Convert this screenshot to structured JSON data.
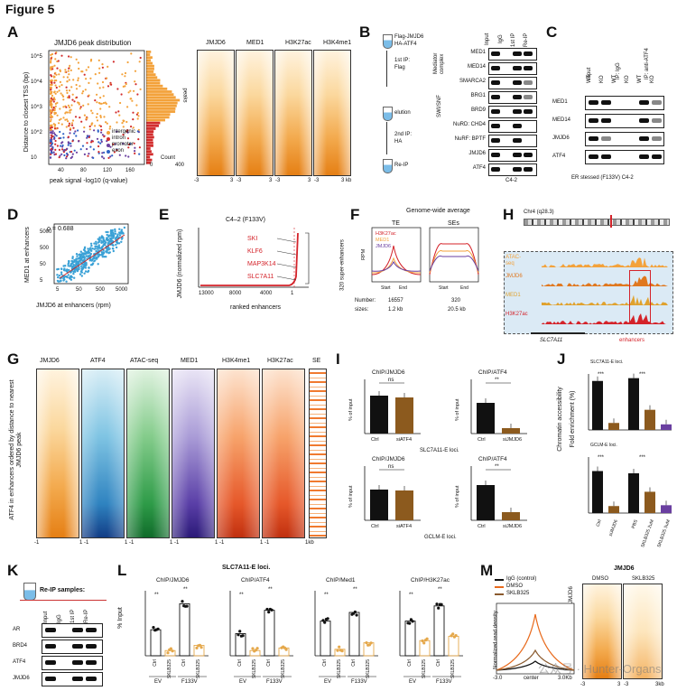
{
  "figure_title": "Figure 5",
  "panels": {
    "A": {
      "letter": "A",
      "title": "JMJD6 peak distribution",
      "ylabel": "Distance to closest TSS (bp)",
      "xlabel": "peak signal -log10 (q-value)",
      "yticks": [
        "10^5",
        "10^4",
        "10^3",
        "10^2",
        "10"
      ],
      "xticks": [
        "40",
        "80",
        "120",
        "160"
      ],
      "legend": [
        {
          "label": "intergenic",
          "color": "#f3a23b"
        },
        {
          "label": "intron",
          "color": "#d22d2d"
        },
        {
          "label": "promoter",
          "color": "#6a3fa0"
        },
        {
          "label": "exon",
          "color": "#2f63c6"
        }
      ],
      "hist_label": "peaks",
      "count_label": "Count",
      "count_ticks": [
        "0",
        "400"
      ],
      "heatmap_labels": [
        "JMJD6",
        "MED1",
        "H3K27ac",
        "H3K4me1"
      ],
      "heatmap_xticks": [
        "-3",
        "3",
        "-3",
        "3",
        "-3",
        "3",
        "-3",
        "3 kb"
      ]
    },
    "B": {
      "letter": "B",
      "steps": [
        "Flag-JMJD6",
        "HA-ATF4",
        "1st IP:",
        "Flag",
        "elution",
        "2nd IP:",
        "HA",
        "Re-IP"
      ],
      "lanes": [
        "Input",
        "IgG",
        "1st IP",
        "Re-IP"
      ],
      "groups": [
        "Mediator complex",
        "SWI/SNF"
      ],
      "rows": [
        "MED1",
        "MED14",
        "SMARCA2",
        "BRG1",
        "BRD9",
        "NuRD: CHD4",
        "NuRF: BPTF",
        "JMJD6",
        "ATF4"
      ],
      "cell": "C4-2"
    },
    "C": {
      "letter": "C",
      "lanes": [
        "WT",
        "KO",
        "WT",
        "KO",
        "WT",
        "KO"
      ],
      "group_labels": [
        "Input",
        "IP: IgG",
        "IP: anti-ATF4"
      ],
      "rows": [
        "MED1",
        "MED14",
        "JMJD6",
        "ATF4"
      ],
      "caption": "ER stessed (F133V) C4-2"
    },
    "D": {
      "letter": "D",
      "rho": "ρ = 0.688",
      "xlabel": "JMJD6 at enhancers (rpm)",
      "ylabel": "MED1 at enhancers",
      "xticks": [
        "5",
        "50",
        "500",
        "5000"
      ],
      "yticks": [
        "5",
        "50",
        "500",
        "5000"
      ]
    },
    "E": {
      "letter": "E",
      "title": "C4–2 (F133V)",
      "ylabel": "JMJD6 (normalized rpm)",
      "xlabel": "ranked enhancers",
      "xticks": [
        "13000",
        "8000",
        "4000",
        "1"
      ],
      "genes": [
        "SKI",
        "KLF6",
        "MAP3K14",
        "SLC7A11"
      ],
      "right_label": "320 super-enhancers"
    },
    "F": {
      "letter": "F",
      "title": "Genome-wide average",
      "sub_left": "TE",
      "sub_right": "SEs",
      "ylabel": "RPM",
      "legend": [
        {
          "label": "H3K27ac",
          "color": "#d4232a"
        },
        {
          "label": "MED1",
          "color": "#f3a23b"
        },
        {
          "label": "JMJD6",
          "color": "#6a3fa0"
        }
      ],
      "xticks": [
        "Start",
        "End"
      ],
      "number_label": "Number:",
      "sizes_label": "sizes:",
      "number_left": "16557",
      "number_right": "320",
      "size_left": "1.2 kb",
      "size_right": "20.5 kb"
    },
    "G": {
      "letter": "G",
      "columns": [
        "JMJD6",
        "ATF4",
        "ATAC-seq",
        "MED1",
        "H3K4me1",
        "H3K27ac",
        "SE"
      ],
      "ylabel": "ATF4 in enhancers ordered by distance to nearest JMJD6 peak",
      "xticks": [
        "-1",
        "1 -1",
        "1 -1",
        "1 -1",
        "1 -1",
        "1 -1",
        "1kb"
      ]
    },
    "H": {
      "letter": "H",
      "chrom": "Chr4 (q28.3)",
      "tracks": [
        "ATAC-seq",
        "JMJD6",
        "MED1",
        "H3K27ac"
      ],
      "gene": "SLC7A11",
      "enhancers_label": "enhancers"
    },
    "I": {
      "letter": "I",
      "subpanels": [
        {
          "title": "ChIP/JMJD6",
          "xlabels": [
            "Ctrl",
            "siATF4"
          ],
          "sig": "ns"
        },
        {
          "title": "ChIP/ATF4",
          "xlabels": [
            "Ctrl",
            "siJMJD6"
          ],
          "sig": "**"
        },
        {
          "title": "ChIP/JMJD6",
          "xlabels": [
            "Ctrl",
            "siATF4"
          ],
          "sig": "ns"
        },
        {
          "title": "ChIP/ATF4",
          "xlabels": [
            "Ctrl",
            "siJMJD6"
          ],
          "sig": "**"
        }
      ],
      "ylabel": "% of input",
      "locus_top": "SLC7A11-E loci.",
      "locus_bottom": "GCLM-E loci."
    },
    "J": {
      "letter": "J",
      "ylabel": "Chromatin accessibility",
      "ylabel2": "Fold enrichment (%)",
      "locus_top": "SLC7A11-E loci.",
      "locus_bottom": "GCLM-E loci.",
      "xlabels": [
        "Ctrl",
        "siJMJD6",
        "PBS",
        "SKLB325 2uM",
        "SKLB325 5uM"
      ],
      "sig": "***"
    },
    "K": {
      "letter": "K",
      "title": "Re-IP samples:",
      "lanes": [
        "Input",
        "IgG",
        "1st IP",
        "Re-IP"
      ],
      "rows": [
        "AR",
        "BRD4",
        "ATF4",
        "JMJD6"
      ]
    },
    "L": {
      "letter": "L",
      "title": "SLC7A11-E loci.",
      "ylabel": "% Input",
      "subpanels": [
        "ChIP/JMJD6",
        "ChIP/ATF4",
        "ChIP/Med1",
        "ChIP/H3K27ac"
      ],
      "xlabels": [
        "Ctrl",
        "SKLB325",
        "Ctrl",
        "SKLB325"
      ],
      "groups": [
        "EV",
        "F133V"
      ],
      "sig": "**"
    },
    "M": {
      "letter": "M",
      "legend": [
        "IgG (control)",
        "DMSO",
        "SKLB325"
      ],
      "legend_group": "JMJD6",
      "ylabel": "Normalized read density",
      "xticks": [
        "-3.0",
        "center",
        "3.0Kb"
      ],
      "heat_title": "JMJD6",
      "heat_cols": [
        "DMSO",
        "SKLB325"
      ],
      "heat_xticks": [
        "-3",
        "3",
        "-3",
        "3kb"
      ],
      "watermark": "公众号 · Hunter-Organs"
    }
  },
  "chart_data": [
    {
      "type": "scatter",
      "id": "A-scatter",
      "title": "JMJD6 peak distribution",
      "xlabel": "peak signal -log10 (q-value)",
      "ylabel": "Distance to closest TSS (bp)",
      "series": [
        {
          "name": "intergenic",
          "color": "#f3a23b"
        },
        {
          "name": "intron",
          "color": "#d22d2d"
        },
        {
          "name": "promoter",
          "color": "#6a3fa0"
        },
        {
          "name": "exon",
          "color": "#2f63c6"
        }
      ]
    },
    {
      "type": "bar",
      "id": "I-bars",
      "ylabel": "% of input",
      "series": [
        {
          "name": "SLC7A11 ChIP/JMJD6",
          "categories": [
            "Ctrl",
            "siATF4"
          ],
          "values": [
            2.1,
            2.0
          ],
          "ylim": [
            0,
            3
          ]
        },
        {
          "name": "SLC7A11 ChIP/ATF4",
          "categories": [
            "Ctrl",
            "siJMJD6"
          ],
          "values": [
            1.7,
            0.3
          ],
          "ylim": [
            0,
            3
          ]
        },
        {
          "name": "GCLM ChIP/JMJD6",
          "categories": [
            "Ctrl",
            "siATF4"
          ],
          "values": [
            3.4,
            3.3
          ],
          "ylim": [
            0,
            6
          ]
        },
        {
          "name": "GCLM ChIP/ATF4",
          "categories": [
            "Ctrl",
            "siJMJD6"
          ],
          "values": [
            5.2,
            1.2
          ],
          "ylim": [
            0,
            8
          ]
        }
      ]
    },
    {
      "type": "bar",
      "id": "J-bars",
      "ylabel": "Fold enrichment (%)",
      "categories": [
        "Ctrl",
        "siJMJD6",
        "PBS",
        "SKLB325 2uM",
        "SKLB325 5uM"
      ],
      "series": [
        {
          "name": "SLC7A11-E",
          "values": [
            1750,
            250,
            1850,
            720,
            200
          ],
          "ylim": [
            0,
            2000
          ]
        },
        {
          "name": "GCLM-E",
          "values": [
            1500,
            250,
            1420,
            760,
            280
          ],
          "ylim": [
            0,
            2000
          ]
        }
      ]
    },
    {
      "type": "bar",
      "id": "L-bars",
      "ylabel": "% Input",
      "categories": [
        "EV Ctrl",
        "EV SKLB325",
        "F133V Ctrl",
        "F133V SKLB325"
      ],
      "series": [
        {
          "name": "ChIP/JMJD6",
          "values": [
            1.0,
            0.2,
            2.0,
            0.4
          ],
          "ylim": [
            0,
            2.5
          ]
        },
        {
          "name": "ChIP/ATF4",
          "values": [
            0.85,
            0.2,
            1.75,
            0.3
          ],
          "ylim": [
            0,
            2.5
          ]
        },
        {
          "name": "ChIP/Med1",
          "values": [
            1.6,
            0.3,
            2.0,
            0.6
          ],
          "ylim": [
            0,
            3
          ]
        },
        {
          "name": "ChIP/H3K27ac",
          "values": [
            8.0,
            3.5,
            11.5,
            4.5
          ],
          "ylim": [
            0,
            15
          ]
        }
      ]
    }
  ]
}
